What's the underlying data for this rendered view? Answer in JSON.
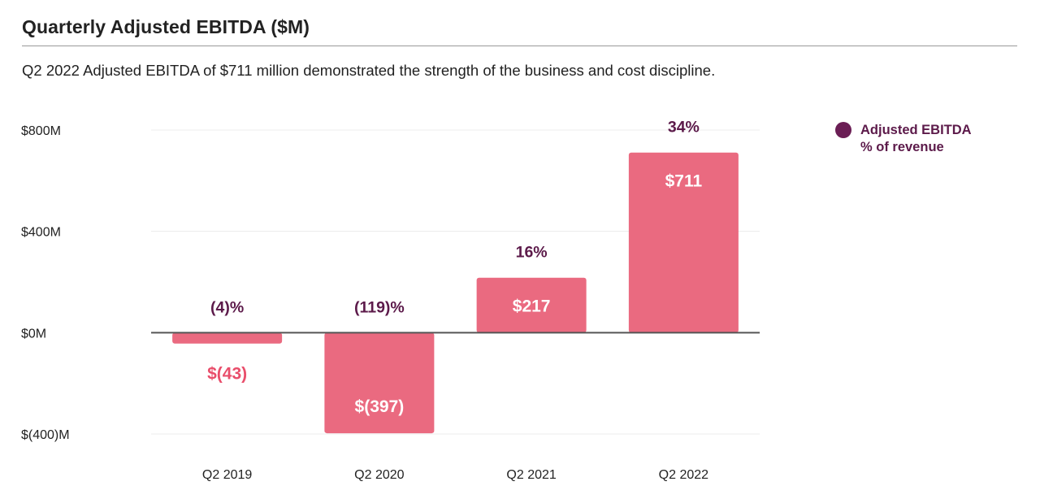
{
  "header": {
    "title": "Quarterly Adjusted EBITDA ($M)",
    "subtitle": "Q2 2022 Adjusted EBITDA of $711 million demonstrated the strength of the business and cost discipline."
  },
  "legend": {
    "line1": "Adjusted EBITDA",
    "line2": "% of revenue"
  },
  "colors": {
    "bar": "#ea6a80",
    "negative_label": "#e94e6b",
    "pct_label": "#5c1a4a",
    "legend_dot": "#6b1e55",
    "axis_text": "#222222",
    "gridline": "#ececec",
    "zero_line": "#555555"
  },
  "chart_data": {
    "type": "bar",
    "title": "Quarterly Adjusted EBITDA ($M)",
    "categories": [
      "Q2 2019",
      "Q2 2020",
      "Q2 2021",
      "Q2 2022"
    ],
    "series": [
      {
        "name": "Adjusted EBITDA",
        "values": [
          -43,
          -397,
          217,
          711
        ],
        "value_labels": [
          "$(43)",
          "$(397)",
          "$217",
          "$711"
        ]
      },
      {
        "name": "% of revenue",
        "values": [
          -4,
          -119,
          16,
          34
        ],
        "value_labels": [
          "(4)%",
          "(119)%",
          "16%",
          "34%"
        ]
      }
    ],
    "y_ticks": [
      800,
      400,
      0,
      -400
    ],
    "y_tick_labels": [
      "$800M",
      "$400M",
      "$0M",
      "$(400)M"
    ],
    "ylim": [
      -400,
      800
    ],
    "xlabel": "",
    "ylabel": "",
    "grid": true,
    "legend_position": "right"
  }
}
